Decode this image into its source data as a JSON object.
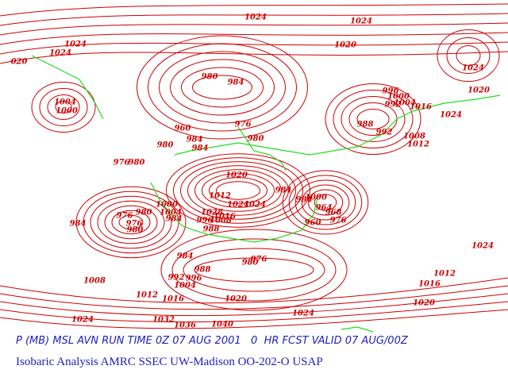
{
  "contour_labels": [
    "1024",
    "1024",
    "1024",
    "1024",
    "020",
    "1020",
    "1024",
    "1020",
    "980",
    "984",
    "996",
    "1000",
    "1004",
    "992",
    "1016",
    "1004",
    "1000",
    "1024",
    "976",
    "988",
    "992",
    "960",
    "980",
    "1008",
    "1012",
    "984",
    "980",
    "984",
    "976",
    "980",
    "1020",
    "984",
    "1012",
    "984",
    "1000",
    "1024",
    "1024",
    "964",
    "968",
    "1000",
    "1004",
    "1028",
    "976",
    "980",
    "984",
    "1016",
    "996",
    "1008",
    "976",
    "980",
    "984",
    "988",
    "960",
    "976",
    "984",
    "976",
    "980",
    "988",
    "1024",
    "992",
    "996",
    "1004",
    "1008",
    "1012",
    "1016",
    "1012",
    "1016",
    "1020",
    "1020",
    "1024",
    "1024",
    "1032",
    "1036",
    "1040"
  ],
  "caption": {
    "line1": "P (MB) MSL AVN RUN TIME 0Z 07 AUG 2001   0  HR FCST VALID 07 AUG/00Z",
    "line2": "Isobaric Analysis AMRC SSEC UW-Madison OO-202-O USAP"
  }
}
